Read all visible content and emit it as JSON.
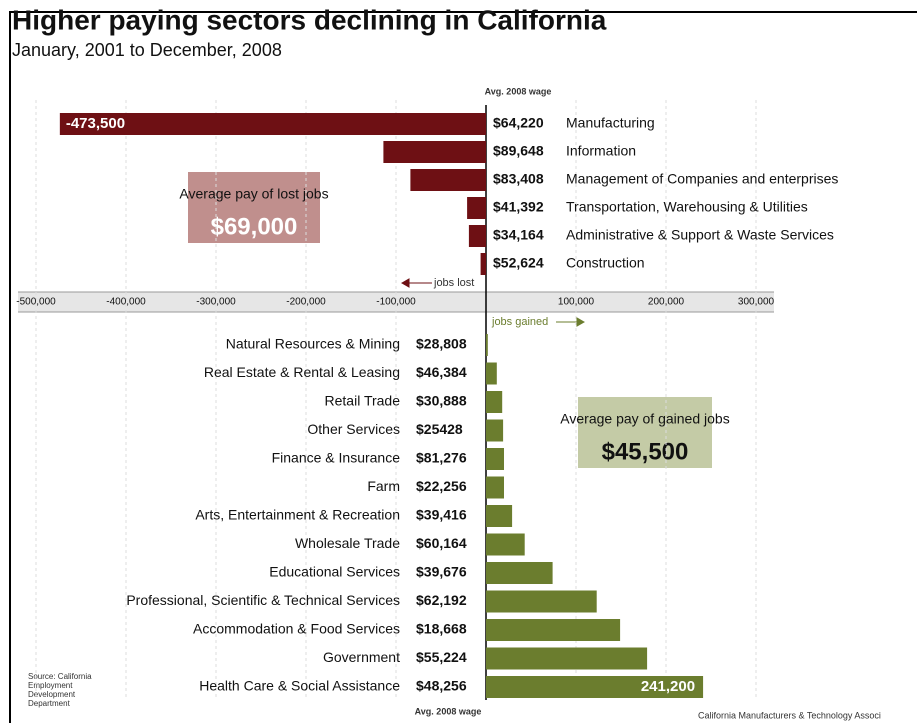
{
  "chart_data": {
    "type": "diverging-bar",
    "title": "Higher paying sectors declining in California",
    "subtitle": "January, 2001 to December, 2008",
    "wage_header": "Avg. 2008 wage",
    "lost_arrow_label": "jobs lost",
    "gained_arrow_label": "jobs gained",
    "lost_box": {
      "text": "Average pay of lost jobs",
      "value": "$69,000"
    },
    "gained_box": {
      "text": "Average pay of gained jobs",
      "value": "$45,500"
    },
    "source": "Source: California Employment Development Department",
    "credit": "California Manufacturers & Technology Associ",
    "xlim": [
      -520000,
      320000
    ],
    "xticks": [
      {
        "value": -500000,
        "label": "-500,000"
      },
      {
        "value": -400000,
        "label": "-400,000"
      },
      {
        "value": -300000,
        "label": "-300,000"
      },
      {
        "value": -200000,
        "label": "-200,000"
      },
      {
        "value": -100000,
        "label": "-100,000"
      },
      {
        "value": 100000,
        "label": "100,000"
      },
      {
        "value": 200000,
        "label": "200,000"
      },
      {
        "value": 300000,
        "label": "300,000"
      }
    ],
    "grid": true,
    "groups": [
      {
        "color": "#6e1014",
        "categories": [
          "Manufacturing",
          "Information",
          "Management of Companies and enterprises",
          "Transportation, Warehousing & Utilities",
          "Administrative & Support & Waste Services",
          "Construction"
        ],
        "wages": [
          "$64,220",
          "$89,648",
          "$83,408",
          "$41,392",
          "$34,164",
          "$52,624"
        ],
        "values": [
          -473500,
          -114000,
          -84000,
          -21000,
          -19000,
          -6000
        ],
        "value_labels": [
          "-473,500",
          null,
          null,
          null,
          null,
          null
        ]
      },
      {
        "color": "#6b7d2e",
        "categories": [
          "Natural Resources & Mining",
          "Real Estate & Rental & Leasing",
          "Retail Trade",
          "Other Services",
          "Finance & Insurance",
          "Farm",
          "Arts, Entertainment & Recreation",
          "Wholesale Trade",
          "Educational Services",
          "Professional, Scientific & Technical Services",
          "Accommodation & Food Services",
          "Government",
          "Health Care & Social Assistance"
        ],
        "wages": [
          "$28,808",
          "$46,384",
          "$30,888",
          "$25428",
          "$81,276",
          "$22,256",
          "$39,416",
          "$60,164",
          "$39,676",
          "$62,192",
          "$18,668",
          "$55,224",
          "$48,256"
        ],
        "values": [
          2000,
          12000,
          18000,
          19000,
          20000,
          20000,
          29000,
          43000,
          74000,
          123000,
          149000,
          179000,
          241200
        ],
        "value_labels": [
          null,
          null,
          null,
          null,
          null,
          null,
          null,
          null,
          null,
          null,
          null,
          null,
          "241,200"
        ]
      }
    ]
  }
}
